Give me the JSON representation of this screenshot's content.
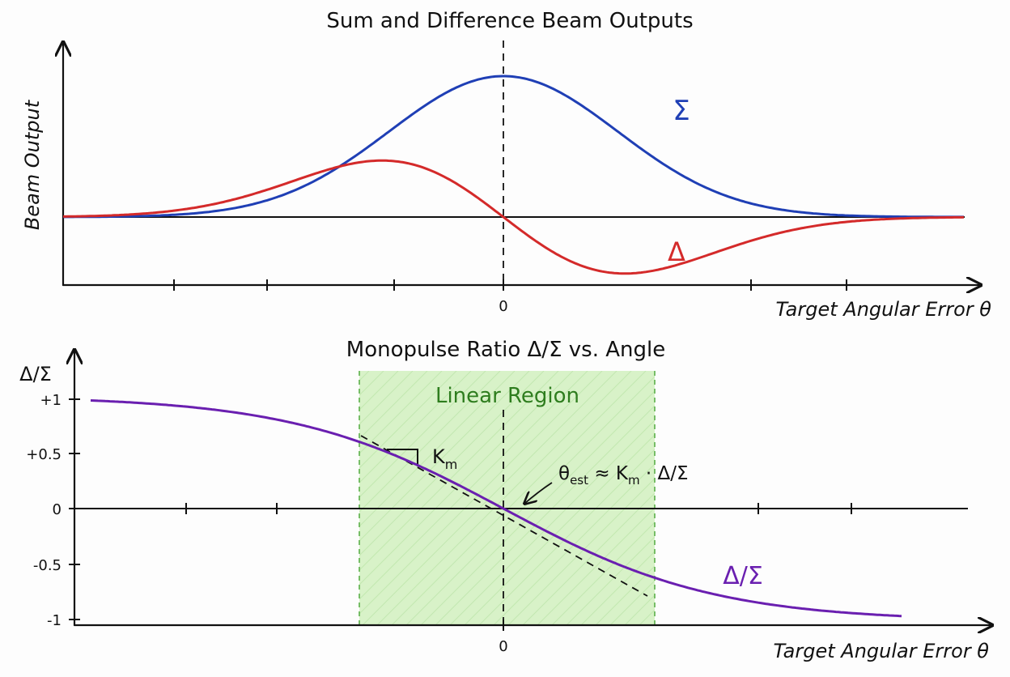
{
  "top_panel": {
    "title": "Sum and Difference Beam Outputs",
    "ylabel": "Beam Output",
    "xlabel": "Target Angular Error θ",
    "zero_tick": "0",
    "sum_label": "Σ",
    "diff_label": "Δ",
    "colors": {
      "sum": "#1f3fb5",
      "diff": "#d42a2a"
    }
  },
  "bottom_panel": {
    "title": "Monopulse Ratio Δ/Σ vs. Angle",
    "ylabel": "Δ/Σ",
    "xlabel": "Target Angular Error θ",
    "zero_tick": "0",
    "y_ticks": [
      "+1",
      "+0.5",
      "0",
      "-0.5",
      "-1"
    ],
    "region_label": "Linear Region",
    "slope_label": "K",
    "slope_sub": "m",
    "estimate_lhs": "θ",
    "estimate_sub": "est",
    "estimate_mid": " ≈ K",
    "estimate_sub2": "m",
    "estimate_rhs": " · Δ/Σ",
    "curve_label": "Δ/Σ",
    "colors": {
      "curve": "#6a1fb0",
      "region_fill": "#d8f2c8",
      "region_edge": "#5bb04a",
      "region_text": "#2e7d1e"
    }
  }
}
